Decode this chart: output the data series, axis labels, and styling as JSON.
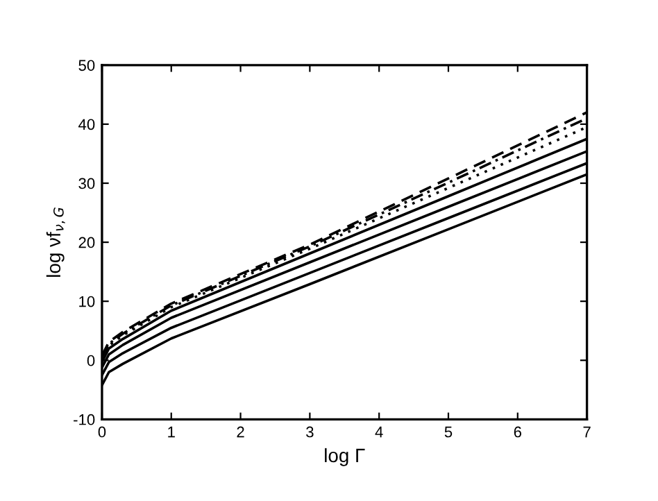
{
  "chart_data": {
    "type": "line",
    "xlabel": "log Γ",
    "ylabel": "log νf$_{ν,G}$",
    "x": [
      0,
      0.1,
      0.3,
      1,
      3,
      5,
      7
    ],
    "series": [
      {
        "color": "#000000",
        "line_style": "solid",
        "values": [
          -4.2,
          -2.0,
          -0.6,
          3.7,
          12.9,
          22.2,
          31.5
        ]
      },
      {
        "color": "#000000",
        "line_style": "solid",
        "values": [
          -2.5,
          -0.3,
          1.2,
          5.5,
          14.8,
          24.1,
          33.4
        ]
      },
      {
        "color": "#000000",
        "line_style": "solid",
        "values": [
          -1.2,
          1.0,
          2.6,
          7.2,
          16.6,
          26.0,
          35.4
        ]
      },
      {
        "color": "#000000",
        "line_style": "solid",
        "values": [
          -0.3,
          2.0,
          3.6,
          8.4,
          18.1,
          27.8,
          37.5
        ]
      },
      {
        "color": "#000000",
        "line_style": "dotted",
        "values": [
          0.2,
          2.5,
          4.2,
          9.0,
          18.9,
          29.2,
          39.5
        ]
      },
      {
        "color": "#000000",
        "line_style": "dashdot",
        "values": [
          0.5,
          2.8,
          4.5,
          9.3,
          19.3,
          30.1,
          41.0
        ]
      },
      {
        "color": "#000000",
        "line_style": "dashed",
        "values": [
          0.8,
          3.1,
          4.8,
          9.6,
          19.6,
          30.8,
          42.0
        ]
      }
    ],
    "xlim": [
      0,
      7
    ],
    "xticks": [
      0,
      1,
      2,
      3,
      4,
      5,
      6,
      7
    ],
    "ylim": [
      -10,
      50
    ],
    "yticks": [
      -10,
      0,
      10,
      20,
      30,
      40,
      50
    ],
    "grid": false,
    "legend": false,
    "marker": "none"
  }
}
